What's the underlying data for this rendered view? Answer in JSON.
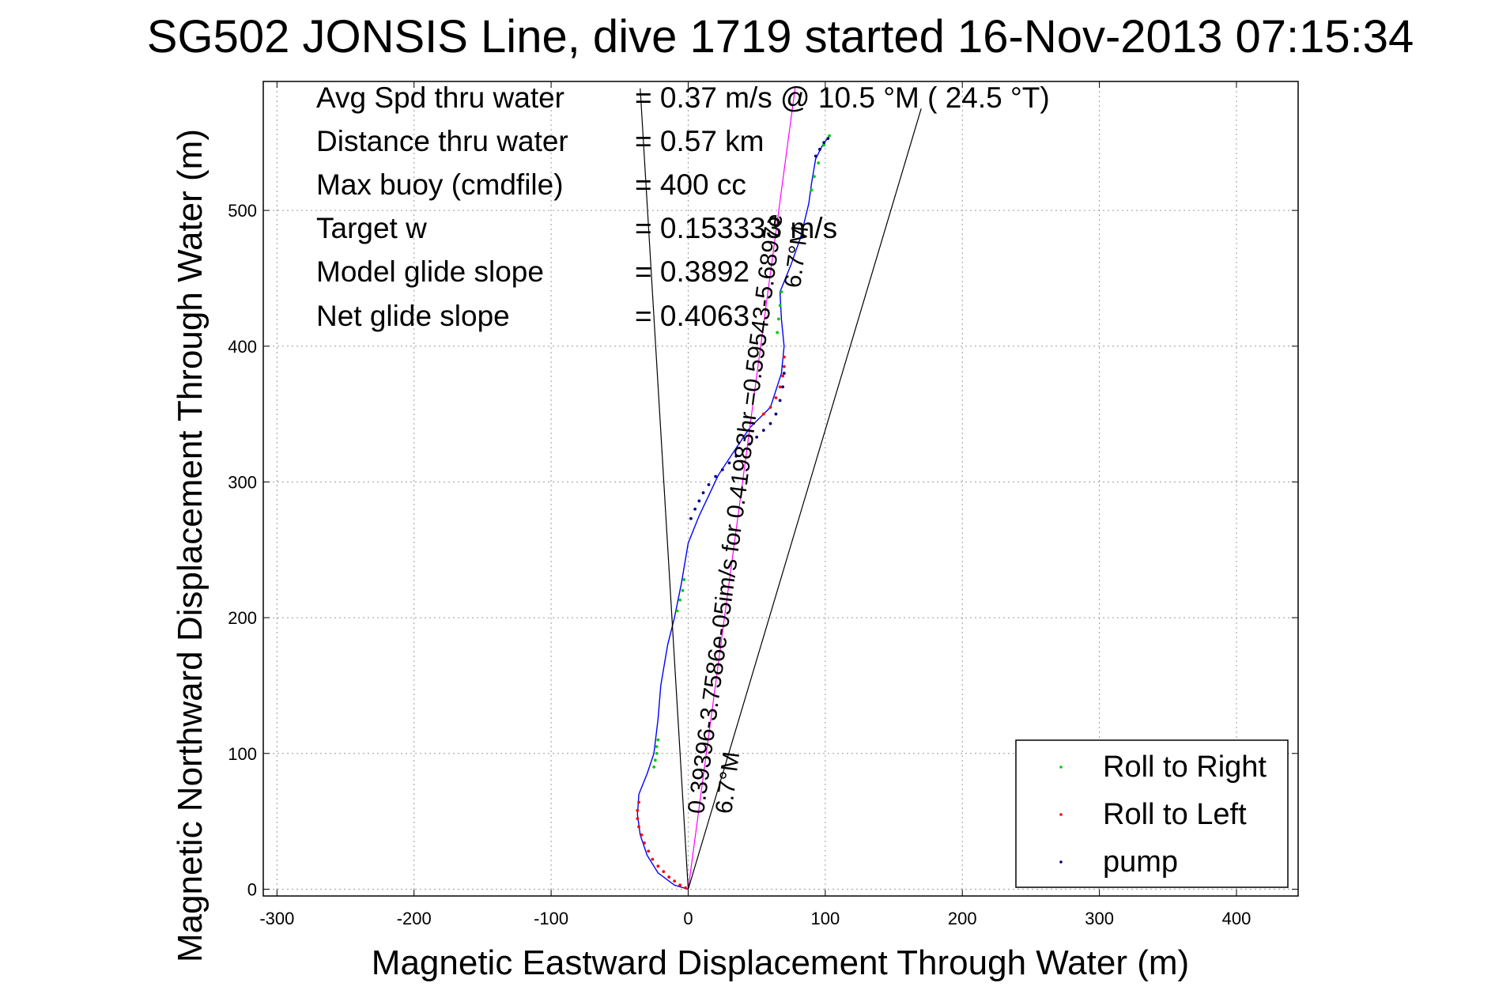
{
  "chart_data": {
    "type": "scatter",
    "title": "SG502 JONSIS Line, dive 1719 started 16-Nov-2013 07:15:34",
    "xlabel": "Magnetic Eastward Displacement Through Water (m)",
    "ylabel": "Magnetic Northward Displacement Through Water (m)",
    "xlim": [
      -310,
      445
    ],
    "ylim": [
      -5,
      595
    ],
    "xticks": [
      "-300",
      "-200",
      "-100",
      "0",
      "100",
      "200",
      "300",
      "400"
    ],
    "xtick_values": [
      -300,
      -200,
      -100,
      0,
      100,
      200,
      300,
      400
    ],
    "yticks": [
      "0",
      "100",
      "200",
      "300",
      "400",
      "500"
    ],
    "ytick_values": [
      0,
      100,
      200,
      300,
      400,
      500
    ],
    "grid": true,
    "legend_placement": "bottom-right",
    "info_lines": [
      {
        "label": "Avg Spd thru water",
        "value": "=  0.37 m/s @  10.5 °M ( 24.5 °T)"
      },
      {
        "label": "Distance thru water",
        "value": "=  0.57 km"
      },
      {
        "label": "Max buoy (cmdfile)",
        "value": "= 400 cc"
      },
      {
        "label": "Target w",
        "value": "= 0.153333 m/s"
      },
      {
        "label": "Model glide slope",
        "value": "= 0.3892"
      },
      {
        "label": "Net glide slope",
        "value": "= 0.4063"
      }
    ],
    "track_labels": [
      "0.39396-3.7586e-05im/s for 0.41983hr =0.59543-5.6897e",
      "6.7°M",
      "6.7°M"
    ],
    "series": [
      {
        "name": "track",
        "kind": "line",
        "color": "#0000ff",
        "x": [
          0,
          -10,
          -22,
          -30,
          -35,
          -37,
          -36,
          -30,
          -25,
          -22,
          -20,
          -15,
          -10,
          -5,
          0,
          8,
          15,
          22,
          35,
          45,
          60,
          68,
          70,
          68,
          67,
          75,
          82,
          88,
          90,
          93,
          98,
          103
        ],
        "y": [
          0,
          3,
          12,
          25,
          40,
          55,
          70,
          85,
          100,
          125,
          150,
          180,
          200,
          225,
          255,
          275,
          290,
          305,
          325,
          340,
          355,
          380,
          400,
          420,
          440,
          460,
          480,
          505,
          520,
          538,
          548,
          555
        ]
      },
      {
        "name": "Roll to Right",
        "kind": "points",
        "color": "#00cc00",
        "x": [
          -25,
          -24,
          -23,
          -23,
          -22,
          -8,
          -6,
          -4,
          -3,
          65,
          66,
          67,
          68,
          90,
          92,
          95,
          99,
          103
        ],
        "y": [
          90,
          95,
          100,
          105,
          110,
          205,
          213,
          220,
          228,
          410,
          420,
          430,
          440,
          515,
          525,
          535,
          548,
          555
        ]
      },
      {
        "name": "Roll to Left",
        "kind": "points",
        "color": "#ff0000",
        "x": [
          -2,
          -6,
          -10,
          -14,
          -18,
          -22,
          -26,
          -29,
          -32,
          -34,
          -36,
          -37,
          -37,
          -36,
          55,
          60,
          64,
          67,
          69,
          70,
          70
        ],
        "y": [
          1,
          3,
          6,
          9,
          13,
          17,
          22,
          28,
          34,
          40,
          46,
          52,
          58,
          64,
          350,
          355,
          362,
          370,
          378,
          385,
          392
        ]
      },
      {
        "name": "pump",
        "kind": "points",
        "color": "#000080",
        "x": [
          2,
          5,
          8,
          11,
          15,
          20,
          25,
          30,
          35,
          40,
          45,
          50,
          55,
          60,
          64,
          67,
          69,
          70,
          93,
          96,
          99,
          102
        ],
        "y": [
          273,
          280,
          286,
          292,
          298,
          304,
          309,
          314,
          319,
          323,
          328,
          333,
          338,
          343,
          350,
          360,
          370,
          380,
          540,
          545,
          550,
          553
        ]
      },
      {
        "name": "current",
        "kind": "line",
        "color": "#ff00ff",
        "x": [
          0,
          78
        ],
        "y": [
          0,
          590
        ]
      },
      {
        "name": "heading-line-left",
        "kind": "line",
        "color": "#000000",
        "x": [
          0,
          -35
        ],
        "y": [
          0,
          590
        ]
      },
      {
        "name": "heading-line-right",
        "kind": "line",
        "color": "#000000",
        "x": [
          0,
          170
        ],
        "y": [
          0,
          575
        ]
      }
    ],
    "legend": [
      {
        "label": "Roll to Right",
        "color": "#00cc00"
      },
      {
        "label": "Roll to Left",
        "color": "#ff0000"
      },
      {
        "label": "pump",
        "color": "#000080"
      }
    ]
  }
}
